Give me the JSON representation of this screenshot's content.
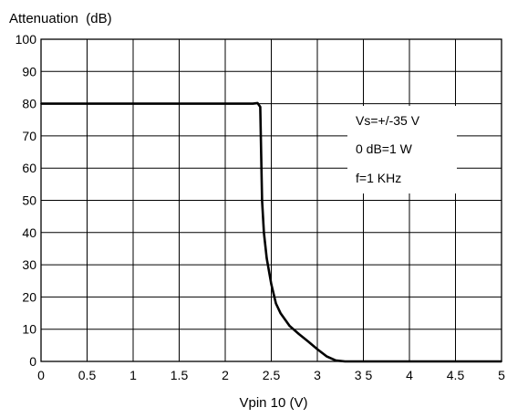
{
  "chart_data": {
    "type": "line",
    "ylabel": "Attenuation  (dB)",
    "xlabel": "Vpin 10 (V)",
    "xlim": [
      0,
      5
    ],
    "ylim": [
      0,
      100
    ],
    "x_ticks": [
      0,
      0.5,
      1,
      1.5,
      2,
      2.5,
      3,
      3.5,
      4,
      4.5,
      5
    ],
    "x_tick_labels": [
      "0",
      "0.5",
      "1",
      "1.5",
      "2",
      "2.5",
      "3",
      "3 5",
      "4",
      "4.5",
      "5"
    ],
    "y_ticks": [
      0,
      10,
      20,
      30,
      40,
      50,
      60,
      70,
      80,
      90,
      100
    ],
    "y_tick_labels": [
      "0",
      "10",
      "20",
      "30",
      "40",
      "50",
      "60",
      "70",
      "80",
      "90",
      "100"
    ],
    "grid": true,
    "series": [
      {
        "x": [
          0,
          2.3,
          2.35,
          2.38,
          2.4,
          2.42,
          2.45,
          2.5,
          2.55,
          2.6,
          2.7,
          2.8,
          2.9,
          3.0,
          3.1,
          3.2,
          3.3,
          3.5,
          4.0,
          5.0
        ],
        "y": [
          80,
          80,
          80.2,
          79,
          50,
          40,
          32,
          24,
          18,
          15,
          11,
          8.5,
          6.2,
          3.8,
          1.6,
          0.3,
          0,
          0,
          0,
          0
        ]
      }
    ],
    "annotations": [
      "Vs=+/-35 V",
      "0 dB=1 W",
      "f=1 KHz"
    ]
  }
}
